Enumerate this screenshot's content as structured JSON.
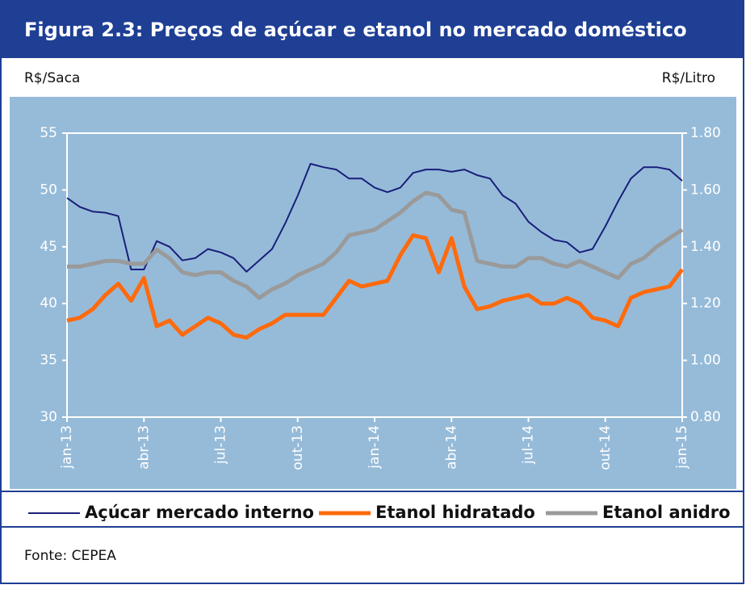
{
  "chart_data": {
    "type": "line",
    "title": "Figura 2.3:  Preços de açúcar e etanol no mercado doméstico",
    "y_label": "R$/Saca",
    "y2_label": "R$/Litro",
    "source": "Fonte: CEPEA",
    "x": [
      0,
      0.5,
      1,
      1.5,
      2,
      2.5,
      3,
      3.5,
      4,
      4.5,
      5,
      5.5,
      6,
      6.5,
      7,
      7.5,
      8,
      8.5,
      9,
      9.5,
      10,
      10.5,
      11,
      11.5,
      12,
      12.5,
      13,
      13.5,
      14,
      14.5,
      15,
      15.5,
      16,
      16.5,
      17,
      17.5,
      18,
      18.5,
      19,
      19.5,
      20,
      20.5,
      21,
      21.5,
      22,
      22.5,
      23,
      23.5,
      24
    ],
    "xlim": [
      0,
      24
    ],
    "xticks": [
      {
        "value": 0,
        "label": "jan-13"
      },
      {
        "value": 3,
        "label": "abr-13"
      },
      {
        "value": 6,
        "label": "jul-13"
      },
      {
        "value": 9,
        "label": "out-13"
      },
      {
        "value": 12,
        "label": "jan-14"
      },
      {
        "value": 15,
        "label": "abr-14"
      },
      {
        "value": 18,
        "label": "jul-14"
      },
      {
        "value": 21,
        "label": "out-14"
      },
      {
        "value": 24,
        "label": "jan-15"
      }
    ],
    "ylim": [
      30,
      55
    ],
    "yticks": [
      30,
      35,
      40,
      45,
      50,
      55
    ],
    "y2lim": [
      0.8,
      1.8
    ],
    "y2ticks": [
      {
        "value": 0.8,
        "label": "0.80"
      },
      {
        "value": 1.0,
        "label": "1.00"
      },
      {
        "value": 1.2,
        "label": "1.20"
      },
      {
        "value": 1.4,
        "label": "1.40"
      },
      {
        "value": 1.6,
        "label": "1.60"
      },
      {
        "value": 1.8,
        "label": "1.80"
      }
    ],
    "series": [
      {
        "name": "Açúcar mercado interno",
        "color": "#1a1f7a",
        "width": 2,
        "values": [
          49.3,
          48.5,
          48.1,
          48.0,
          47.7,
          43.0,
          43.0,
          45.5,
          45.0,
          43.8,
          44.0,
          44.8,
          44.5,
          44.0,
          42.8,
          43.8,
          44.8,
          47.0,
          49.5,
          52.3,
          52.0,
          51.8,
          51.0,
          51.0,
          50.2,
          49.8,
          50.2,
          51.5,
          51.8,
          51.8,
          51.6,
          51.8,
          51.3,
          51.0,
          49.5,
          48.8,
          47.2,
          46.3,
          45.6,
          45.4,
          44.5,
          44.8,
          46.8,
          49.0,
          51.0,
          52.0,
          52.0,
          51.8,
          50.8
        ]
      },
      {
        "name": "Etanol hidratado",
        "color": "#ff6a0d",
        "width": 5,
        "axis": "y2",
        "values": [
          1.14,
          1.15,
          1.18,
          1.23,
          1.27,
          1.21,
          1.29,
          1.12,
          1.14,
          1.09,
          1.12,
          1.15,
          1.13,
          1.09,
          1.08,
          1.11,
          1.13,
          1.16,
          1.16,
          1.16,
          1.16,
          1.22,
          1.28,
          1.26,
          1.27,
          1.28,
          1.37,
          1.44,
          1.43,
          1.31,
          1.43,
          1.26,
          1.18,
          1.19,
          1.21,
          1.22,
          1.23,
          1.2,
          1.2,
          1.22,
          1.2,
          1.15,
          1.14,
          1.12,
          1.22,
          1.24,
          1.25,
          1.26,
          1.32
        ]
      },
      {
        "name": "Etanol anidro",
        "color": "#9a9a9a",
        "width": 5,
        "axis": "y2",
        "values": [
          1.33,
          1.33,
          1.34,
          1.35,
          1.35,
          1.34,
          1.34,
          1.39,
          1.36,
          1.31,
          1.3,
          1.31,
          1.31,
          1.28,
          1.26,
          1.22,
          1.25,
          1.27,
          1.3,
          1.32,
          1.34,
          1.38,
          1.44,
          1.45,
          1.46,
          1.49,
          1.52,
          1.56,
          1.59,
          1.58,
          1.53,
          1.52,
          1.35,
          1.34,
          1.33,
          1.33,
          1.36,
          1.36,
          1.34,
          1.33,
          1.35,
          1.33,
          1.31,
          1.29,
          1.34,
          1.36,
          1.4,
          1.43,
          1.46
        ]
      }
    ]
  }
}
